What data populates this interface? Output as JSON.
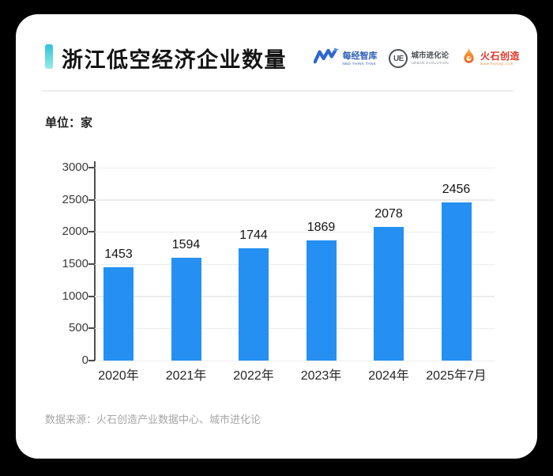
{
  "header": {
    "title": "浙江低空经济企业数量",
    "accent_color_top": "#2fc3da",
    "accent_color_bottom": "#97ece6",
    "logos": [
      {
        "name": "nbd-think-tank-logo",
        "text": "每经智库",
        "subtext": "NBD THINK TANK",
        "color": "#2e5fb8"
      },
      {
        "name": "urban-evolution-logo",
        "badge": "UE",
        "text": "城市进化论",
        "subtext": "URBAN EVOLUTION",
        "color": "#4b5055"
      },
      {
        "name": "huoshi-logo",
        "text": "火石创造",
        "subtext": "www.hsmap.com",
        "color": "#df3526"
      }
    ]
  },
  "unit_label": "单位：家",
  "chart_data": {
    "type": "bar",
    "title": "浙江低空经济企业数量",
    "unit": "家",
    "categories": [
      "2020年",
      "2021年",
      "2022年",
      "2023年",
      "2024年",
      "2025年7月"
    ],
    "values": [
      1453,
      1594,
      1744,
      1869,
      2078,
      2456
    ],
    "xlabel": "",
    "ylabel": "",
    "ylim": [
      0,
      3000
    ],
    "yticks": [
      0,
      500,
      1000,
      1500,
      2000,
      2500,
      3000
    ],
    "grid": true,
    "legend": "none",
    "value_labels": true,
    "bar_color": "#2590F2",
    "gridline_color": "#ececec",
    "axis_color": "#4f4f4f"
  },
  "footer": {
    "source": "数据来源：火石创造产业数据中心、城市进化论"
  }
}
